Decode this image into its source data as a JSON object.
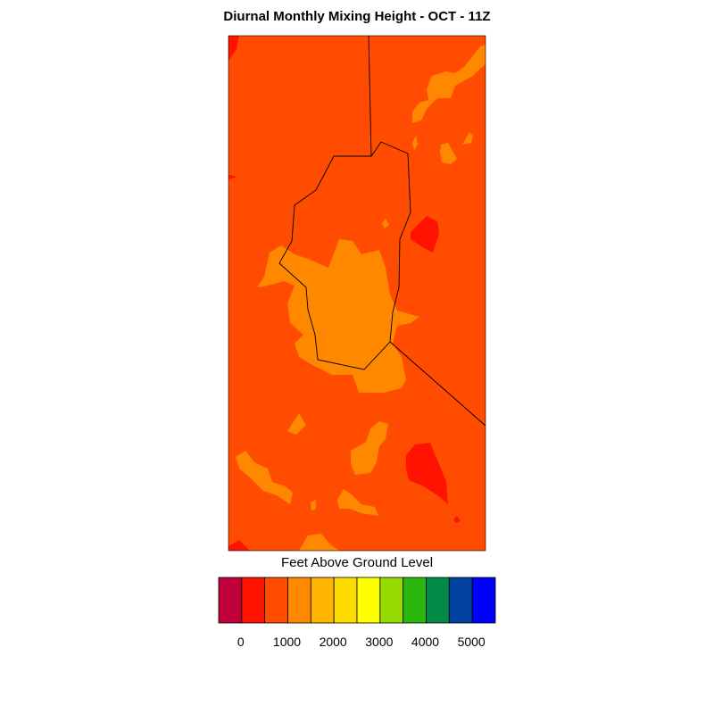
{
  "title": "Diurnal Monthly Mixing Height - OCT - 11Z",
  "legend": {
    "title": "Feet Above Ground Level",
    "colors": [
      "#c0003a",
      "#ff1200",
      "#ff4c00",
      "#ff8800",
      "#ffb400",
      "#ffdc00",
      "#ffff00",
      "#96dc00",
      "#2ab80e",
      "#008a46",
      "#0040a0",
      "#0000ff"
    ],
    "tick_labels": [
      "0",
      "1000",
      "2000",
      "3000",
      "4000",
      "5000"
    ]
  },
  "map": {
    "colors": {
      "background": "#ff4c00",
      "level_1000_1500": "#ff8800",
      "level_below_0": "#ff1200",
      "level_dark": "#c0003a",
      "outline": "#000000"
    }
  }
}
